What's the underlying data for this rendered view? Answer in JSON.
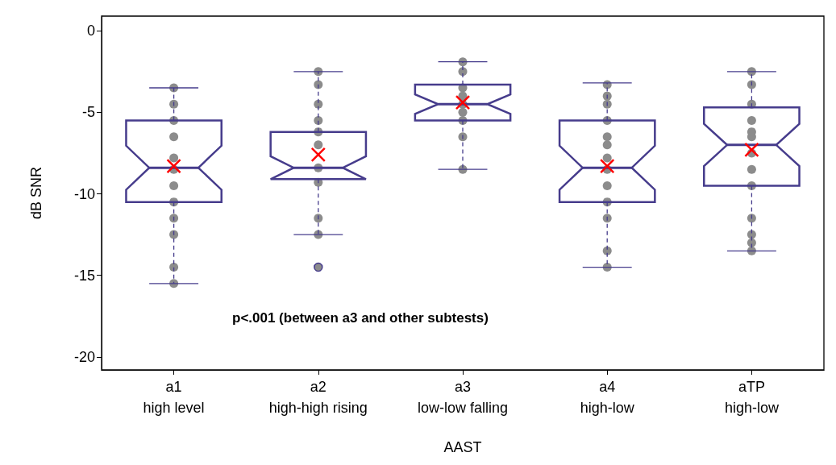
{
  "chart_data": {
    "type": "box",
    "xlabel": "AAST",
    "ylabel": "dB SNR",
    "categories": [
      "a1\nhigh level",
      "a2\nhigh-high rising",
      "a3\nlow-low falling",
      "a4\nhigh-low",
      "aTP\nhigh-low"
    ],
    "color": "#463c8c",
    "boxes": [
      {
        "low": -15.5,
        "q1": -10.5,
        "median": -8.4,
        "q3": -5.5,
        "high": -3.5,
        "mean": -8.3
      },
      {
        "low": -12.5,
        "q1": -9.1,
        "median": -8.4,
        "q3": -6.2,
        "high": -2.5,
        "mean": -7.6,
        "outliers": [
          -14.5
        ]
      },
      {
        "low": -8.5,
        "q1": -5.5,
        "median": -4.5,
        "q3": -3.3,
        "high": -1.9,
        "mean": -4.4
      },
      {
        "low": -14.5,
        "q1": -10.5,
        "median": -8.4,
        "q3": -5.5,
        "high": -3.2,
        "mean": -8.3
      },
      {
        "low": -13.5,
        "q1": -9.5,
        "median": -7.0,
        "q3": -4.7,
        "high": -2.5,
        "mean": -7.3
      }
    ],
    "series": [
      {
        "type": "scatter",
        "color": "#8c8c8c",
        "x": [
          "a1\nhigh level",
          "a1\nhigh level",
          "a1\nhigh level",
          "a1\nhigh level",
          "a1\nhigh level",
          "a1\nhigh level",
          "a1\nhigh level",
          "a1\nhigh level",
          "a1\nhigh level",
          "a1\nhigh level",
          "a1\nhigh level",
          "a1\nhigh level",
          "a2\nhigh-high rising",
          "a2\nhigh-high rising",
          "a2\nhigh-high rising",
          "a2\nhigh-high rising",
          "a2\nhigh-high rising",
          "a2\nhigh-high rising",
          "a2\nhigh-high rising",
          "a2\nhigh-high rising",
          "a2\nhigh-high rising",
          "a2\nhigh-high rising",
          "a3\nlow-low falling",
          "a3\nlow-low falling",
          "a3\nlow-low falling",
          "a3\nlow-low falling",
          "a3\nlow-low falling",
          "a3\nlow-low falling",
          "a3\nlow-low falling",
          "a3\nlow-low falling",
          "a3\nlow-low falling",
          "a4\nhigh-low",
          "a4\nhigh-low",
          "a4\nhigh-low",
          "a4\nhigh-low",
          "a4\nhigh-low",
          "a4\nhigh-low",
          "a4\nhigh-low",
          "a4\nhigh-low",
          "a4\nhigh-low",
          "a4\nhigh-low",
          "a4\nhigh-low",
          "a4\nhigh-low",
          "a4\nhigh-low",
          "aTP\nhigh-low",
          "aTP\nhigh-low",
          "aTP\nhigh-low",
          "aTP\nhigh-low",
          "aTP\nhigh-low",
          "aTP\nhigh-low",
          "aTP\nhigh-low",
          "aTP\nhigh-low",
          "aTP\nhigh-low",
          "aTP\nhigh-low",
          "aTP\nhigh-low",
          "aTP\nhigh-low",
          "aTP\nhigh-low"
        ],
        "values": [
          -3.5,
          -4.5,
          -5.5,
          -6.5,
          -7.8,
          -8.5,
          -9.5,
          -10.5,
          -11.5,
          -12.5,
          -14.5,
          -15.5,
          -2.5,
          -3.3,
          -4.5,
          -5.5,
          -6.2,
          -7.0,
          -8.4,
          -9.3,
          -11.5,
          -12.5,
          -1.9,
          -2.5,
          -3.5,
          -4.0,
          -4.5,
          -5.0,
          -5.5,
          -6.5,
          -8.5,
          -3.3,
          -4.0,
          -4.5,
          -5.5,
          -6.5,
          -7.0,
          -7.8,
          -8.5,
          -9.5,
          -10.5,
          -11.5,
          -13.5,
          -14.5,
          -2.5,
          -3.3,
          -4.5,
          -5.5,
          -6.2,
          -6.5,
          -7.5,
          -8.5,
          -9.5,
          -11.5,
          -12.5,
          -13.0,
          -13.5
        ]
      }
    ],
    "ylim": [
      -20.8,
      0.9
    ],
    "yticks": [
      0,
      -5,
      -10,
      -15,
      -20
    ],
    "annotations": [
      "p<.001 (between a3 and other subtests)"
    ]
  }
}
